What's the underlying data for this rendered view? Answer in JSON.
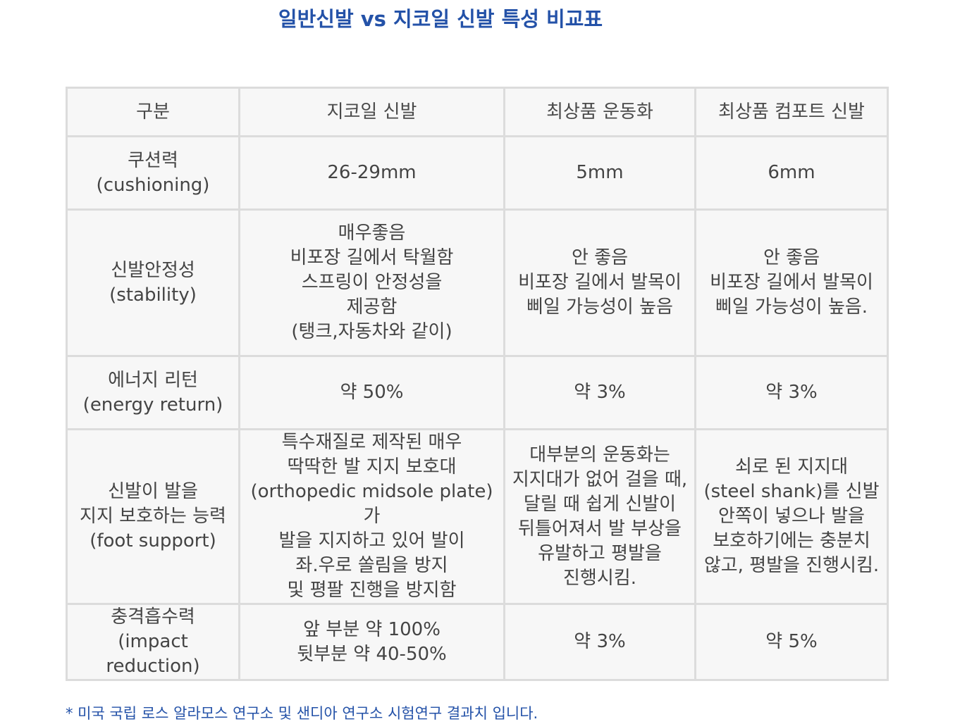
{
  "title": "일반신발 vs 지코일 신발 특성 비교표",
  "table": {
    "headers": [
      "구분",
      "지코일 신발",
      "최상품 운동화",
      "최상품 컴포트 신발"
    ],
    "rows": [
      {
        "label": "쿠션력\n(cushioning)",
        "cells": [
          "26-29mm",
          "5mm",
          "6mm"
        ]
      },
      {
        "label": "신발안정성\n(stability)",
        "cells": [
          "매우좋음\n비포장 길에서 탁월함\n스프링이 안정성을\n제공함\n(탱크,자동차와 같이)",
          "안 좋음\n비포장 길에서 발목이\n삐일 가능성이 높음",
          "안 좋음\n비포장 길에서 발목이\n삐일 가능성이 높음."
        ]
      },
      {
        "label": "에너지 리턴\n(energy return)",
        "cells": [
          "약 50%",
          "약 3%",
          "약 3%"
        ]
      },
      {
        "label": "신발이 발을\n지지 보호하는 능력\n(foot support)",
        "cells": [
          "특수재질로 제작된 매우\n딱딱한 발 지지 보호대\n(orthopedic midsole plate)가\n발을 지지하고 있어 발이\n좌.우로 쏠림을 방지\n및 평팔 진행을 방지함",
          "대부분의 운동화는\n지지대가 없어 걸을 때,\n달릴 때 쉽게 신발이\n뒤틀어져서 발 부상을\n유발하고 평발을\n진행시킴.",
          "쇠로 된 지지대\n(steel shank)를 신발\n안쪽이 넣으나 발을\n보호하기에는 충분치\n않고, 평발을 진행시킴."
        ]
      },
      {
        "label": "충격흡수력\n(impact reduction)",
        "cells": [
          "앞 부분 약 100%\n뒷부분 약 40-50%",
          "약 3%",
          "약 5%"
        ]
      }
    ]
  },
  "footnote": "* 미국 국립 로스 알라모스 연구소 및 샌디아 연구소 시험연구 결과치 입니다.",
  "colors": {
    "accent": "#2452a8",
    "cell_background": "#f7f7f7",
    "border": "#dcdcdc",
    "text": "#444444"
  }
}
